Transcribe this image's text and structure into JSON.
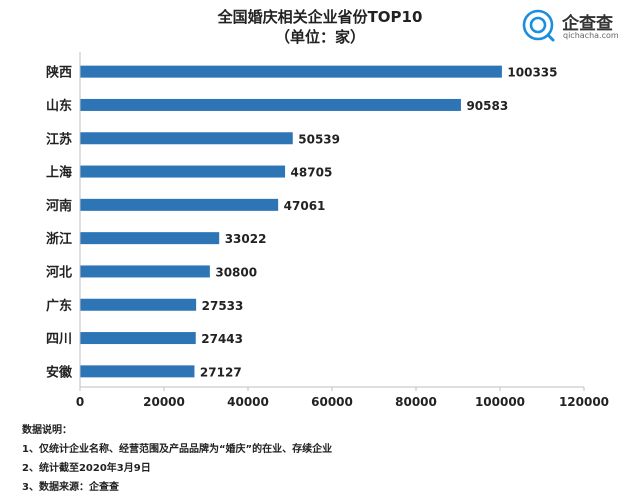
{
  "header": {
    "title": "全国婚庆相关企业省份TOP10",
    "subtitle": "（单位：家）"
  },
  "logo": {
    "name": "企查查",
    "domain": "qichacha.com",
    "icon": "qichacha-logo-icon",
    "color": "#1a8ee1"
  },
  "chart_data": {
    "type": "bar",
    "orientation": "horizontal",
    "categories": [
      "陕西",
      "山东",
      "江苏",
      "上海",
      "河南",
      "浙江",
      "河北",
      "广东",
      "四川",
      "安徽"
    ],
    "values": [
      100335,
      90583,
      50539,
      48705,
      47061,
      33022,
      30800,
      27533,
      27443,
      27127
    ],
    "value_labels": [
      "100335",
      "90583",
      "50539",
      "48705",
      "47061",
      "33022",
      "30800",
      "27533",
      "27443",
      "27127"
    ],
    "xlim": [
      0,
      120000
    ],
    "xticks": [
      "0",
      "20000",
      "40000",
      "60000",
      "80000",
      "100000",
      "120000"
    ],
    "bar_color": "#2e75b6",
    "grid": false,
    "legend": "none"
  },
  "notes": {
    "heading": "数据说明：",
    "items": [
      "1、仅统计企业名称、经营范围及产品品牌为“婚庆”的在业、存续企业",
      "2、统计截至2020年3月9日",
      "3、数据来源：企查查"
    ]
  }
}
